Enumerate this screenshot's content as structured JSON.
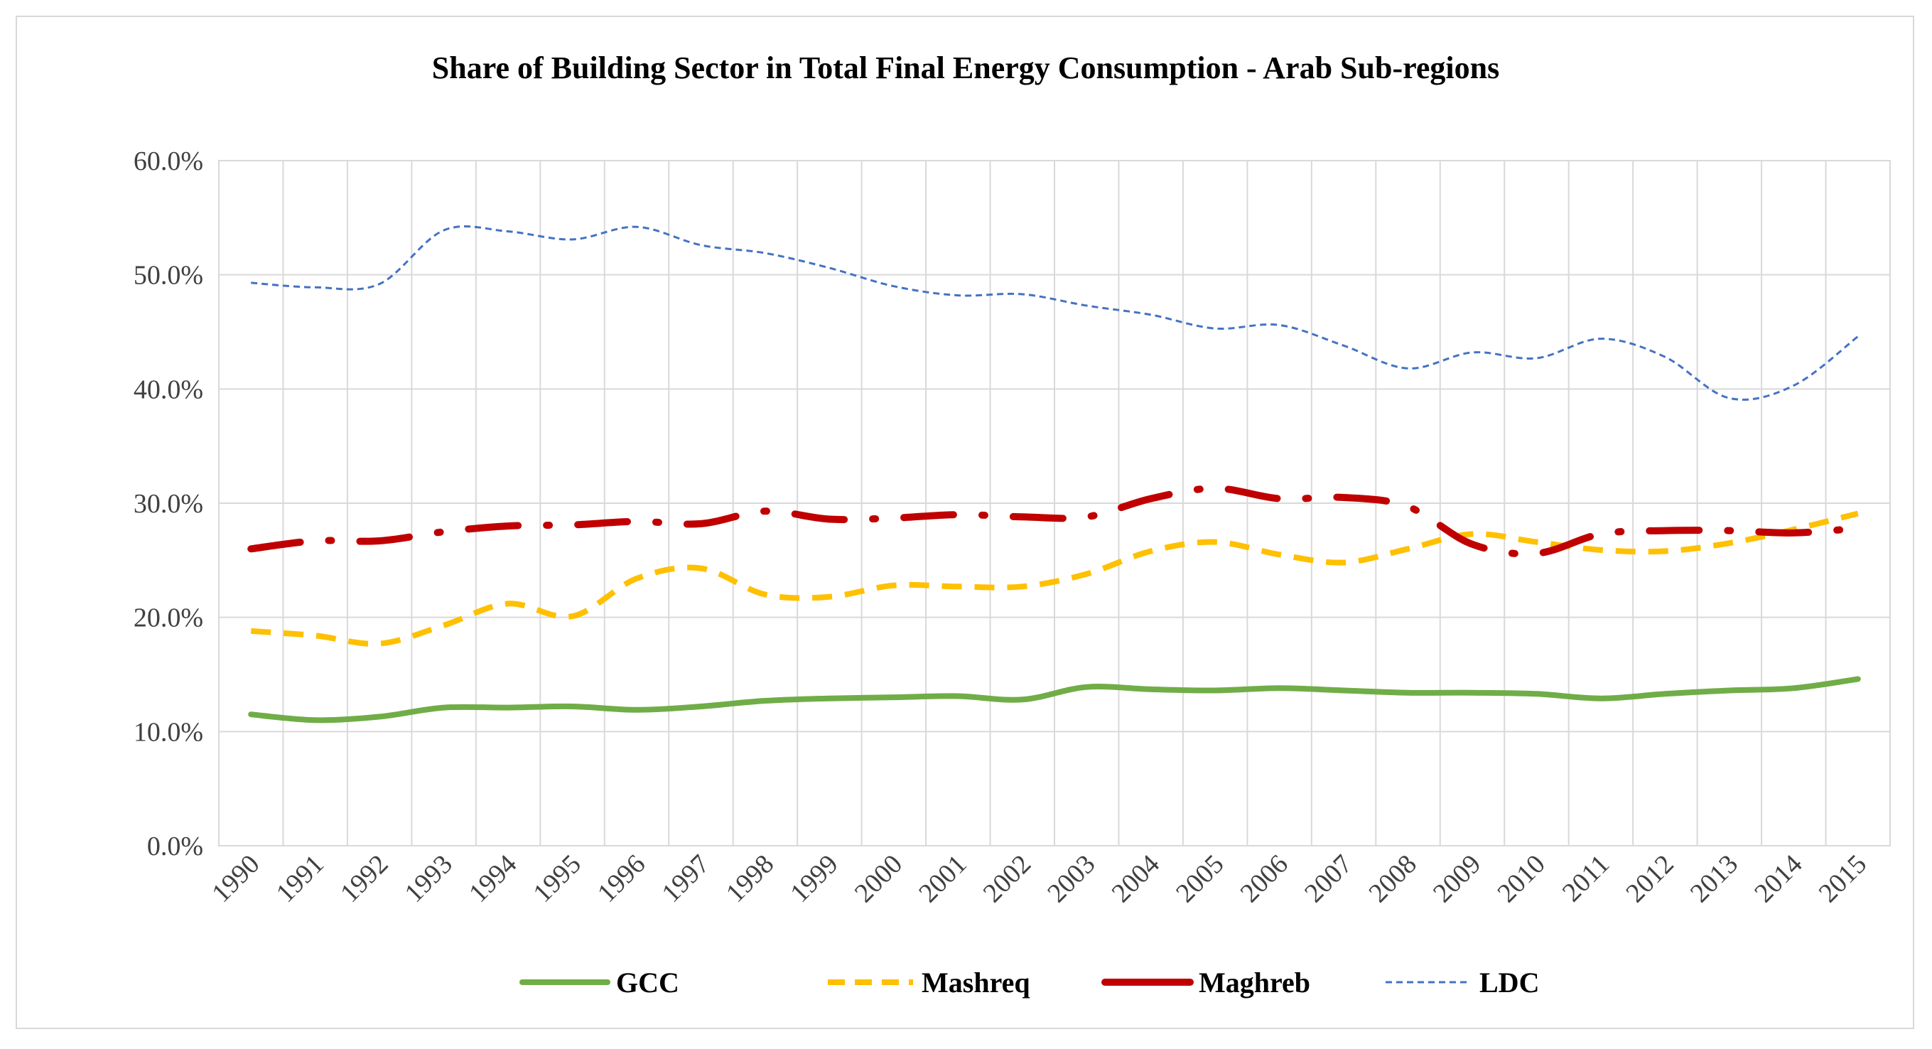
{
  "chart_data": {
    "type": "line",
    "title": "Share of Building Sector in Total Final Energy Consumption - Arab Sub-regions",
    "xlabel": "",
    "ylabel": "",
    "categories": [
      "1990",
      "1991",
      "1992",
      "1993",
      "1994",
      "1995",
      "1996",
      "1997",
      "1998",
      "1999",
      "2000",
      "2001",
      "2002",
      "2003",
      "2004",
      "2005",
      "2006",
      "2007",
      "2008",
      "2009",
      "2010",
      "2011",
      "2012",
      "2013",
      "2014",
      "2015"
    ],
    "ylim": [
      0,
      60
    ],
    "yticks": [
      0,
      10,
      20,
      30,
      40,
      50,
      60
    ],
    "ytick_labels": [
      "0.0%",
      "10.0%",
      "20.0%",
      "30.0%",
      "40.0%",
      "50.0%",
      "60.0%"
    ],
    "grid": true,
    "legend_position": "bottom",
    "series": [
      {
        "name": "GCC",
        "color": "#70ad47",
        "style": "solid",
        "values": [
          11.5,
          11.0,
          11.3,
          12.1,
          12.1,
          12.2,
          11.9,
          12.2,
          12.7,
          12.9,
          13.0,
          13.1,
          12.8,
          13.9,
          13.7,
          13.6,
          13.8,
          13.6,
          13.4,
          13.4,
          13.3,
          12.9,
          13.3,
          13.6,
          13.8,
          14.6
        ]
      },
      {
        "name": "Mashreq",
        "color": "#ffc000",
        "style": "dashed",
        "values": [
          18.8,
          18.4,
          17.7,
          19.3,
          21.2,
          20.1,
          23.4,
          24.3,
          22.0,
          21.8,
          22.8,
          22.7,
          22.7,
          23.8,
          25.8,
          26.6,
          25.5,
          24.8,
          26.0,
          27.3,
          26.6,
          25.9,
          25.8,
          26.5,
          27.7,
          29.1
        ]
      },
      {
        "name": "Maghreb",
        "color": "#c00000",
        "style": "dashdot",
        "values": [
          26.0,
          26.7,
          26.7,
          27.5,
          28.0,
          28.1,
          28.4,
          28.2,
          29.3,
          28.6,
          28.7,
          29.0,
          28.8,
          28.8,
          30.4,
          31.3,
          30.4,
          30.5,
          29.7,
          26.4,
          25.6,
          27.3,
          27.6,
          27.6,
          27.4,
          27.8
        ]
      },
      {
        "name": "LDC",
        "color": "#4472c4",
        "style": "dotted",
        "values": [
          49.3,
          48.9,
          49.2,
          53.9,
          53.8,
          53.1,
          54.2,
          52.6,
          51.9,
          50.6,
          49.0,
          48.2,
          48.3,
          47.3,
          46.5,
          45.3,
          45.6,
          43.8,
          41.8,
          43.2,
          42.7,
          44.4,
          42.8,
          39.2,
          40.3,
          44.6
        ]
      }
    ]
  }
}
